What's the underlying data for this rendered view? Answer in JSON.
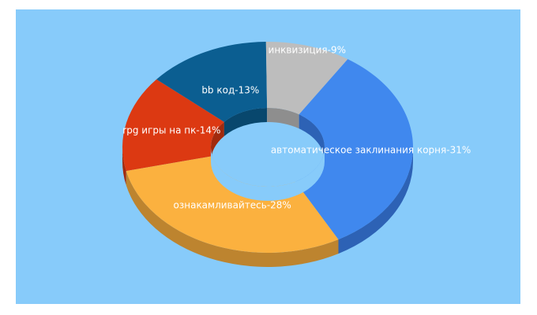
{
  "chart_data": {
    "type": "pie",
    "style": "3d-donut",
    "background": "#87cbfa",
    "slices": [
      {
        "label": "rpg игры на пк",
        "value": 14,
        "display": "rpg игры на пк-14%",
        "color": "#dc3912",
        "shade": "#a12a0e"
      },
      {
        "label": "bb код",
        "value": 13,
        "display": "bb код-13%",
        "color": "#0b5e91",
        "shade": "#08476d"
      },
      {
        "label": "инквизиция",
        "value": 9,
        "display": "инквизиция-9%",
        "color": "#bdbdbd",
        "shade": "#8e8e8e"
      },
      {
        "label": "автоматическое заклинания корня",
        "value": 31,
        "display": "автоматическое заклинания корня-31%",
        "color": "#4088ee",
        "shade": "#2d62b5"
      },
      {
        "label": "ознакамливайтесь",
        "value": 28,
        "display": "ознакамливайтесь-28%",
        "color": "#fbb13f",
        "shade": "#bd842f"
      }
    ]
  }
}
